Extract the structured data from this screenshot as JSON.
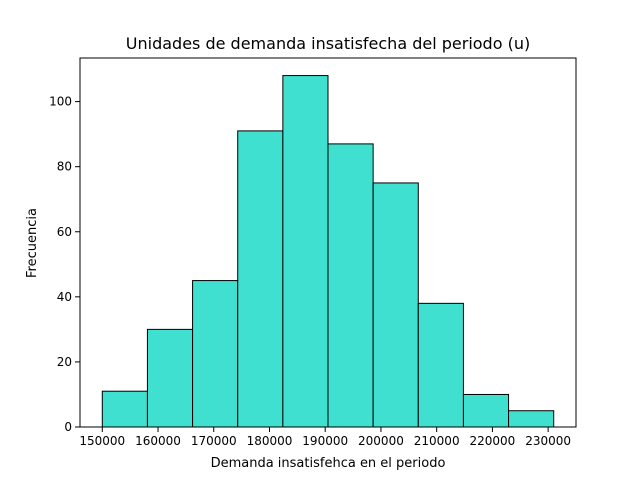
{
  "chart_data": {
    "type": "bar",
    "subtype": "histogram",
    "title": "Unidades de demanda insatisfecha del periodo (u)",
    "xlabel": "Demanda insatisfehca en el periodo",
    "ylabel": "Frecuencia",
    "bin_edges": [
      150000,
      158100,
      166200,
      174300,
      182400,
      190500,
      198600,
      206700,
      214800,
      222900,
      231000
    ],
    "values": [
      11,
      30,
      45,
      91,
      108,
      87,
      75,
      38,
      10,
      5
    ],
    "xlim": [
      146000,
      235000
    ],
    "ylim": [
      0,
      113.4
    ],
    "xticks": [
      150000,
      160000,
      170000,
      180000,
      190000,
      200000,
      210000,
      220000,
      230000
    ],
    "xtick_labels": [
      "150000",
      "160000",
      "170000",
      "180000",
      "190000",
      "200000",
      "210000",
      "220000",
      "230000"
    ],
    "yticks": [
      0,
      20,
      40,
      60,
      80,
      100
    ],
    "ytick_labels": [
      "0",
      "20",
      "40",
      "60",
      "80",
      "100"
    ],
    "bar_color": "#40e0d0",
    "edge_color": "#000000",
    "grid": false,
    "legend": "none"
  }
}
